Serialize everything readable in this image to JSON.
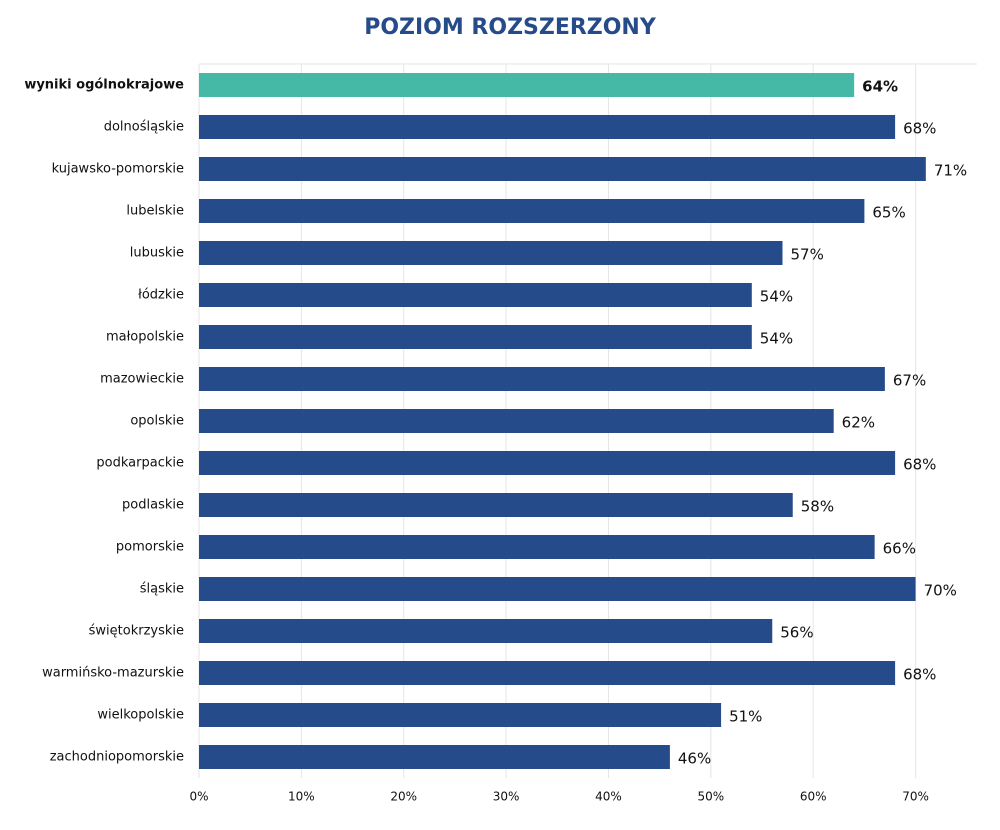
{
  "chart_data": {
    "type": "bar",
    "orientation": "horizontal",
    "title": "POZIOM ROZSZERZONY",
    "categories": [
      "wyniki ogólnokrajowe",
      "dolnośląskie",
      "kujawsko-pomorskie",
      "lubelskie",
      "lubuskie",
      "łódzkie",
      "małopolskie",
      "mazowieckie",
      "opolskie",
      "podkarpackie",
      "podlaskie",
      "pomorskie",
      "śląskie",
      "świętokrzyskie",
      "warmińsko-mazurskie",
      "wielkopolskie",
      "zachodniopomorskie"
    ],
    "values": [
      64,
      68,
      71,
      65,
      57,
      54,
      54,
      67,
      62,
      68,
      58,
      66,
      70,
      56,
      68,
      51,
      46
    ],
    "value_labels": [
      "64%",
      "68%",
      "71%",
      "65%",
      "57%",
      "54%",
      "54%",
      "67%",
      "62%",
      "68%",
      "58%",
      "66%",
      "70%",
      "56%",
      "68%",
      "51%",
      "46%"
    ],
    "colors": [
      "#45b8a6",
      "#264b8a",
      "#264b8a",
      "#264b8a",
      "#264b8a",
      "#264b8a",
      "#264b8a",
      "#264b8a",
      "#264b8a",
      "#264b8a",
      "#264b8a",
      "#264b8a",
      "#264b8a",
      "#264b8a",
      "#264b8a",
      "#264b8a",
      "#264b8a"
    ],
    "xlim": [
      0,
      76
    ],
    "xticks": [
      {
        "value": 0,
        "label": "0%"
      },
      {
        "value": 10,
        "label": "10%"
      },
      {
        "value": 20,
        "label": "20%"
      },
      {
        "value": 30,
        "label": "30%"
      },
      {
        "value": 40,
        "label": "40%"
      },
      {
        "value": 50,
        "label": "50%"
      },
      {
        "value": 60,
        "label": "60%"
      },
      {
        "value": 70,
        "label": "70%"
      }
    ],
    "grid": true
  }
}
